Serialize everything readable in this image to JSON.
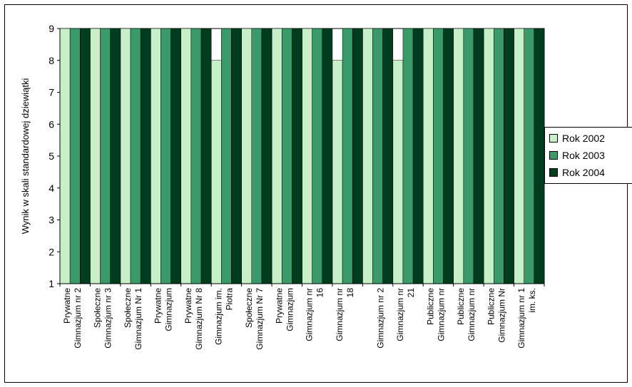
{
  "chart_data": {
    "type": "bar",
    "ylabel": "Wynik w skali standardowej dziewiątki",
    "xlabel": "",
    "ylim": [
      1,
      9
    ],
    "yticks": [
      "1",
      "2",
      "3",
      "4",
      "5",
      "6",
      "7",
      "8",
      "9"
    ],
    "grid": false,
    "legend_position": "right",
    "categories": [
      "Prywatne Gimnazjum nr 2",
      "Społeczne Gimnazjum nr 3",
      "Społeczne Gimnazjum Nr 1",
      "Prywatne Gimnazjum",
      "Prywatne Gimnazjum Nr 8",
      "Gimnazjum im. Piotra",
      "Społeczne Gimnazjum Nr 7",
      "Prywatne Gimnazjum",
      "Gimnazjum nr 16",
      "Gimnazjum nr 18",
      "Gimnazjum nr 2",
      "Gimnazjum nr 21",
      "Publiczne Gimnazjum nr",
      "Publiczne Gimnazjum nr",
      "Publiczne Gimnazjum Nr",
      "Gimnazjum nr 1 im. ks."
    ],
    "category_lines": [
      [
        "Prywatne",
        "Gimnazjum nr 2"
      ],
      [
        "Społeczne",
        "Gimnazjum nr 3"
      ],
      [
        "Społeczne",
        "Gimnazjum Nr 1"
      ],
      [
        "Prywatne",
        "Gimnazjum"
      ],
      [
        "Prywatne",
        "Gimnazjum Nr 8"
      ],
      [
        "Gimnazjum im.",
        "Piotra"
      ],
      [
        "Społeczne",
        "Gimnazjum Nr 7"
      ],
      [
        "Prywatne",
        "Gimnazjum"
      ],
      [
        "Gimnazjum nr",
        "16"
      ],
      [
        "Gimnazjum nr",
        "18"
      ],
      [
        "",
        "Gimnazjum nr 2"
      ],
      [
        "Gimnazjum nr",
        "21"
      ],
      [
        "Publiczne",
        "Gimnazjum nr"
      ],
      [
        "Publiczne",
        "Gimnazjum nr"
      ],
      [
        "Publiczne",
        "Gimnazjum Nr"
      ],
      [
        "Gimnazjum nr 1",
        "im. ks."
      ]
    ],
    "series": [
      {
        "name": "Rok 2002",
        "color": "#c8f0c8",
        "values": [
          9,
          9,
          9,
          9,
          9,
          8,
          9,
          9,
          9,
          8,
          9,
          8,
          9,
          9,
          9,
          9
        ]
      },
      {
        "name": "Rok 2003",
        "color": "#3a9a6a",
        "values": [
          9,
          9,
          9,
          9,
          9,
          9,
          9,
          9,
          9,
          9,
          9,
          9,
          9,
          9,
          9,
          9
        ]
      },
      {
        "name": "Rok 2004",
        "color": "#003c1e",
        "values": [
          9,
          9,
          9,
          9,
          9,
          9,
          9,
          9,
          9,
          9,
          9,
          9,
          9,
          9,
          9,
          9
        ]
      }
    ]
  }
}
